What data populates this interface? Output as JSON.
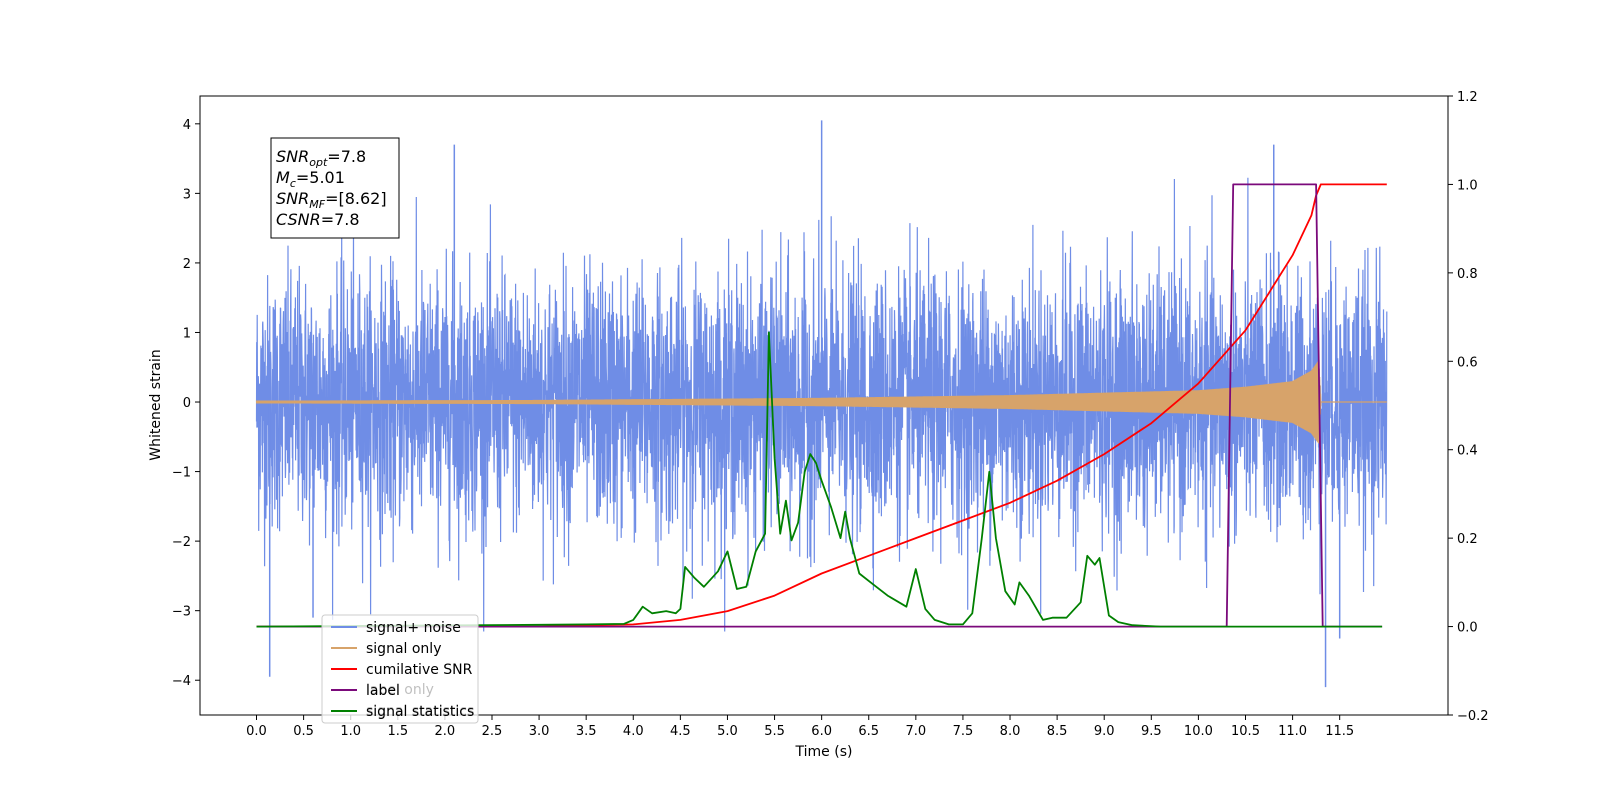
{
  "chart_data": {
    "type": "line",
    "xlabel": "Time (s)",
    "ylabel": "Whitened strain",
    "xlim": [
      -0.6,
      12.65
    ],
    "ylim_left": [
      -4.5,
      4.4
    ],
    "ylim_right": [
      -0.2,
      1.2
    ],
    "x_ticks": [
      "0.0",
      "0.5",
      "1.0",
      "1.5",
      "2.0",
      "2.5",
      "3.0",
      "3.5",
      "4.0",
      "4.5",
      "5.0",
      "5.5",
      "6.0",
      "6.5",
      "7.0",
      "7.5",
      "8.0",
      "8.5",
      "9.0",
      "9.5",
      "10.0",
      "10.5",
      "11.0",
      "11.5"
    ],
    "y_ticks_left": [
      "−4",
      "−3",
      "−2",
      "−1",
      "0",
      "1",
      "2",
      "3",
      "4"
    ],
    "y_ticks_right": [
      "−0.2",
      "0.0",
      "0.2",
      "0.4",
      "0.6",
      "0.8",
      "1.0",
      "1.2"
    ],
    "grid": false,
    "legend_position": "bottom-left",
    "info_box": {
      "lines": [
        {
          "base": "SNR",
          "sub": "opt",
          "value": "=7.8"
        },
        {
          "base": "M",
          "sub": "c",
          "value": "=5.01"
        },
        {
          "base": "SNR",
          "sub": "MF",
          "value": "=[8.62]"
        },
        {
          "base": "CSNR",
          "sub": "",
          "value": "=7.8"
        }
      ]
    },
    "series": [
      {
        "name": "signal+ noise",
        "axis": "left",
        "color": "#6f8de6",
        "kind": "noise",
        "x_range": [
          0.0,
          12.0
        ],
        "std": 0.9,
        "spikes": [
          [
            0.14,
            -3.95
          ],
          [
            6.0,
            4.05
          ],
          [
            10.8,
            3.7
          ],
          [
            11.35,
            -4.1
          ],
          [
            11.5,
            -3.4
          ],
          [
            0.6,
            -3.1
          ],
          [
            2.1,
            3.7
          ]
        ]
      },
      {
        "name": "signal only",
        "axis": "left",
        "color": "#d7a36a",
        "kind": "chirp",
        "x_range": [
          0.0,
          12.0
        ],
        "envelope": [
          [
            0.0,
            0.02
          ],
          [
            3.0,
            0.03
          ],
          [
            6.0,
            0.06
          ],
          [
            8.0,
            0.1
          ],
          [
            10.0,
            0.17
          ],
          [
            10.5,
            0.22
          ],
          [
            11.0,
            0.3
          ],
          [
            11.2,
            0.45
          ],
          [
            11.28,
            0.6
          ],
          [
            11.3,
            0.0
          ],
          [
            12.0,
            0.0
          ]
        ]
      },
      {
        "name": "cumilative SNR",
        "axis": "right",
        "color": "#ff0000",
        "x": [
          0.0,
          3.0,
          4.0,
          4.5,
          5.0,
          5.5,
          6.0,
          6.5,
          7.0,
          7.5,
          8.0,
          8.5,
          9.0,
          9.5,
          10.0,
          10.5,
          11.0,
          11.2,
          11.25,
          11.3,
          12.0
        ],
        "y": [
          0.0,
          0.0,
          0.005,
          0.015,
          0.035,
          0.07,
          0.12,
          0.16,
          0.2,
          0.24,
          0.28,
          0.33,
          0.39,
          0.46,
          0.55,
          0.67,
          0.84,
          0.93,
          0.975,
          1.0,
          1.0
        ]
      },
      {
        "name": "label",
        "axis": "right",
        "color": "#7b0a7b",
        "x": [
          0.0,
          10.3,
          10.37,
          11.25,
          11.32,
          11.95
        ],
        "y": [
          0.0,
          0.0,
          1.0,
          1.0,
          0.0,
          0.0
        ]
      },
      {
        "name": "signal statistics",
        "axis": "right",
        "color": "#008000",
        "x": [
          0.0,
          3.0,
          3.5,
          3.9,
          4.0,
          4.1,
          4.2,
          4.35,
          4.45,
          4.5,
          4.55,
          4.65,
          4.75,
          4.9,
          5.0,
          5.1,
          5.2,
          5.3,
          5.4,
          5.44,
          5.5,
          5.56,
          5.62,
          5.68,
          5.75,
          5.82,
          5.88,
          5.94,
          6.0,
          6.1,
          6.2,
          6.25,
          6.3,
          6.4,
          6.55,
          6.7,
          6.9,
          7.0,
          7.1,
          7.2,
          7.35,
          7.5,
          7.6,
          7.7,
          7.78,
          7.85,
          7.95,
          8.05,
          8.1,
          8.2,
          8.35,
          8.45,
          8.5,
          8.6,
          8.75,
          8.82,
          8.9,
          8.95,
          9.05,
          9.15,
          9.3,
          9.6,
          11.95
        ],
        "y": [
          0.0,
          0.004,
          0.005,
          0.006,
          0.015,
          0.045,
          0.03,
          0.035,
          0.03,
          0.04,
          0.135,
          0.11,
          0.09,
          0.125,
          0.17,
          0.085,
          0.09,
          0.17,
          0.21,
          0.665,
          0.38,
          0.21,
          0.285,
          0.195,
          0.235,
          0.35,
          0.39,
          0.37,
          0.33,
          0.27,
          0.2,
          0.26,
          0.2,
          0.12,
          0.095,
          0.07,
          0.045,
          0.13,
          0.04,
          0.015,
          0.005,
          0.005,
          0.03,
          0.2,
          0.35,
          0.2,
          0.08,
          0.05,
          0.1,
          0.07,
          0.015,
          0.02,
          0.02,
          0.02,
          0.055,
          0.16,
          0.14,
          0.155,
          0.025,
          0.01,
          0.003,
          0.0,
          0.0
        ]
      }
    ],
    "legend_extra_text": [
      "label only",
      "signal statistics"
    ]
  }
}
